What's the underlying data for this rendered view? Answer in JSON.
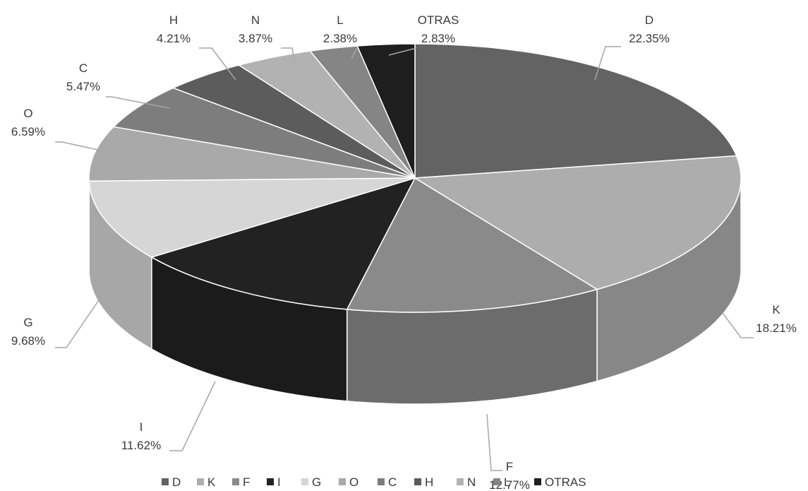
{
  "chart_data": {
    "type": "pie",
    "style": "3d",
    "categories": [
      "D",
      "K",
      "F",
      "I",
      "G",
      "O",
      "C",
      "H",
      "N",
      "L",
      "OTRAS"
    ],
    "values": [
      22.35,
      18.21,
      12.77,
      11.62,
      9.68,
      6.59,
      5.47,
      4.21,
      3.87,
      2.38,
      2.83
    ],
    "value_labels": [
      "22.35%",
      "18.21%",
      "12.77%",
      "11.62%",
      "9.68%",
      "6.59%",
      "5.47%",
      "4.21%",
      "3.87%",
      "2.38%",
      "2.83%"
    ],
    "unit": "%",
    "colors": [
      "#636363",
      "#adadad",
      "#8a8a8a",
      "#222222",
      "#d6d6d6",
      "#a9a9a9",
      "#7d7d7d",
      "#5c5c5c",
      "#b2b2b2",
      "#858585",
      "#1e1e1e"
    ],
    "legend_position": "bottom",
    "title": "",
    "data_labels": "category and percent with leader lines"
  }
}
